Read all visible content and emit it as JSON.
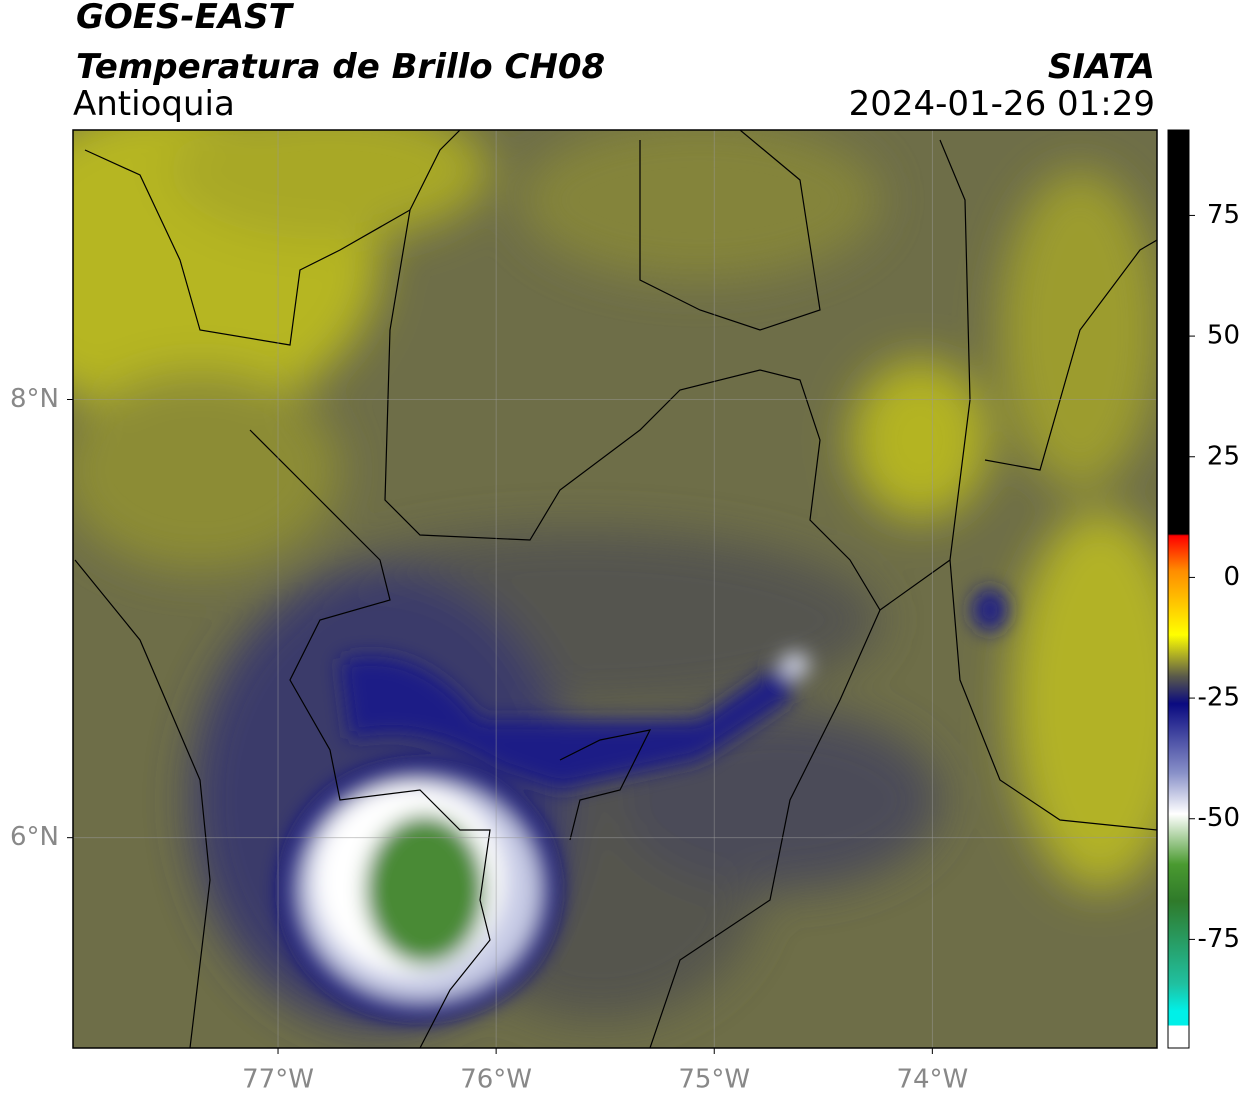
{
  "header": {
    "title": "GOES-EAST",
    "subtitle": "Temperatura de Brillo CH08",
    "region": "Antioquia",
    "source": "SIATA",
    "datetime": "2024-01-26 01:29"
  },
  "map": {
    "xlim": [
      -77.94,
      -72.97
    ],
    "ylim": [
      5.04,
      9.23
    ],
    "xticks": [
      {
        "value": -77,
        "label": "77°W"
      },
      {
        "value": -76,
        "label": "76°W"
      },
      {
        "value": -75,
        "label": "75°W"
      },
      {
        "value": -74,
        "label": "74°W"
      }
    ],
    "yticks": [
      {
        "value": 6,
        "label": "6°N"
      },
      {
        "value": 8,
        "label": "8°N"
      }
    ],
    "grid": true
  },
  "colorbar": {
    "lim": [
      -97.5,
      92.7
    ],
    "ticks": [
      -75,
      -50,
      -25,
      0,
      25,
      50,
      75
    ]
  }
}
